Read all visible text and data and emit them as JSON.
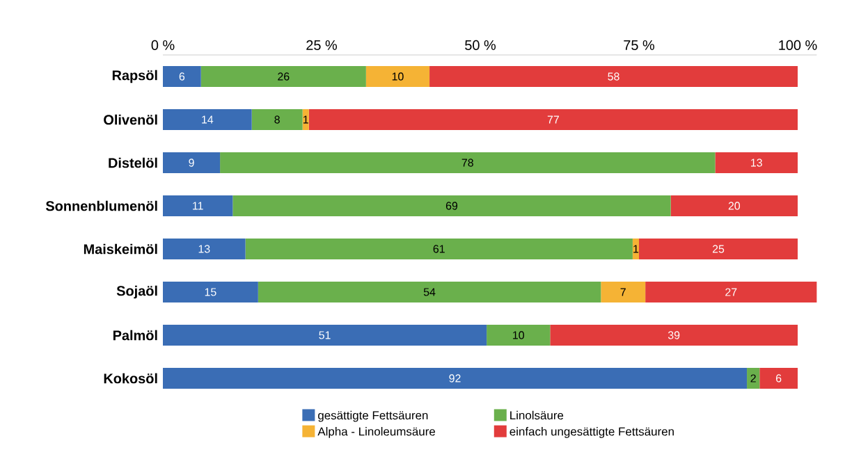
{
  "chart_data": {
    "type": "bar",
    "orientation": "horizontal",
    "stacked": true,
    "categories": [
      "Rapsöl",
      "Olivenöl",
      "Distelöl",
      "Sonnenblumenöl",
      "Maiskeimöl",
      "Sojaöl",
      "Palmöl",
      "Kokosöl"
    ],
    "series": [
      {
        "name": "gesättigte Fettsäuren",
        "color": "#3a6db5",
        "values": [
          6,
          14,
          9,
          11,
          13,
          15,
          51,
          92
        ]
      },
      {
        "name": "Linolsäure",
        "color": "#6ab04c",
        "values": [
          26,
          8,
          78,
          69,
          61,
          54,
          10,
          2
        ]
      },
      {
        "name": "Alpha - Linoleumsäure",
        "color": "#f5b335",
        "values": [
          10,
          1,
          null,
          null,
          1,
          7,
          null,
          null
        ]
      },
      {
        "name": "einfach ungesättigte Fettsäuren",
        "color": "#e23c3c",
        "values": [
          58,
          77,
          13,
          20,
          25,
          27,
          39,
          6
        ]
      }
    ],
    "xlim": [
      0,
      103
    ],
    "xticks": [
      {
        "value": 0,
        "label": "0 %"
      },
      {
        "value": 25,
        "label": "25 %"
      },
      {
        "value": 50,
        "label": "50 %"
      },
      {
        "value": 75,
        "label": "75 %"
      },
      {
        "value": 100,
        "label": "100 %"
      }
    ],
    "data_labels": true,
    "grid": false,
    "legend": "bottom"
  }
}
